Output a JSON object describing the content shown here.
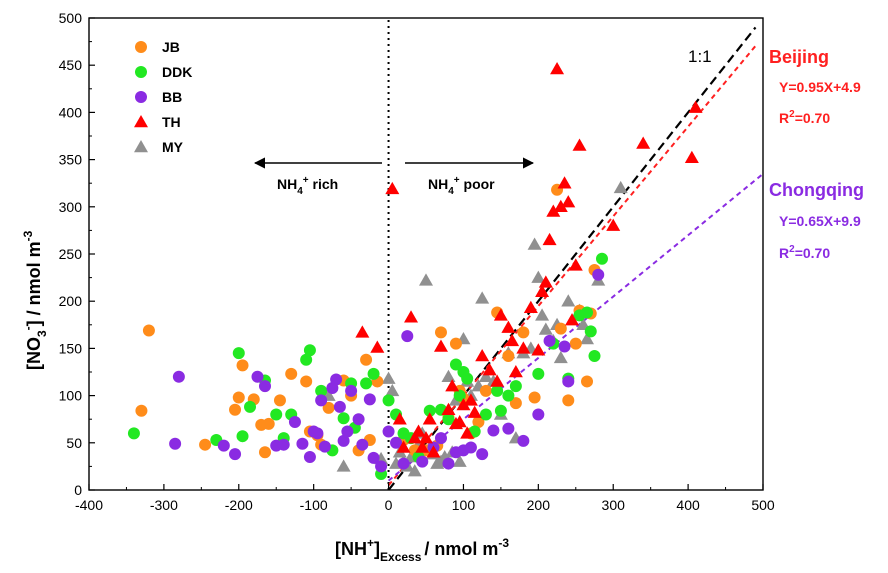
{
  "chart_data": {
    "type": "scatter",
    "xlim": [
      -400,
      500
    ],
    "ylim": [
      0,
      500
    ],
    "x_ticks": [
      -400,
      -300,
      -200,
      -100,
      0,
      100,
      200,
      300,
      400,
      500
    ],
    "y_ticks": [
      0,
      50,
      100,
      150,
      200,
      250,
      300,
      350,
      400,
      450,
      500
    ],
    "grid": false,
    "legend_position": "top-left",
    "xlabel": {
      "main": "[NH",
      "sup": "+",
      "tail": "]",
      "sub": "Excess",
      "unit": "/ nmol m",
      "unit_sup": "-3"
    },
    "ylabel": {
      "main": "[NO",
      "sub": "3",
      "sup": "-",
      "tail": "] / nmol m",
      "unit_sup": "-3"
    },
    "annotations": {
      "rich": {
        "pre": "NH",
        "sub": "4",
        "sup": "+",
        "post": " rich"
      },
      "poor": {
        "pre": "NH",
        "sub": "4",
        "sup": "+",
        "post": " poor"
      },
      "one_to_one": "1:1"
    },
    "regressions": [
      {
        "name": "Beijing",
        "equation": "Y=0.95X+4.9",
        "r2_pre": "R",
        "r2_sup": "2",
        "r2_post": "=0.70",
        "slope": 0.95,
        "intercept": 4.9,
        "x_range": [
          0,
          490
        ],
        "color": "#ff2020"
      },
      {
        "name": "Chongqing",
        "equation": "Y=0.65X+9.9",
        "r2_pre": "R",
        "r2_sup": "2",
        "r2_post": "=0.70",
        "slope": 0.65,
        "intercept": 9.9,
        "x_range": [
          0,
          500
        ],
        "color": "#8a2be2"
      }
    ],
    "reference_lines": [
      {
        "name": "1:1",
        "slope": 1,
        "intercept": 0,
        "x_range": [
          0,
          490
        ],
        "color": "#000000",
        "style": "dashed"
      },
      {
        "name": "x=0",
        "vertical_x": 0,
        "y_range": [
          0,
          500
        ],
        "color": "#000000",
        "style": "dotted"
      }
    ],
    "series": [
      {
        "name": "JB",
        "color": "#ff8c1a",
        "marker": "circle",
        "points": [
          [
            -320,
            169
          ],
          [
            -330,
            84
          ],
          [
            -245,
            48
          ],
          [
            -205,
            85
          ],
          [
            -200,
            98
          ],
          [
            -195,
            132
          ],
          [
            -180,
            96
          ],
          [
            -170,
            69
          ],
          [
            -165,
            40
          ],
          [
            -160,
            70
          ],
          [
            -145,
            95
          ],
          [
            -130,
            123
          ],
          [
            -110,
            115
          ],
          [
            -105,
            62
          ],
          [
            -95,
            58
          ],
          [
            -90,
            48
          ],
          [
            -80,
            87
          ],
          [
            -60,
            116
          ],
          [
            -50,
            100
          ],
          [
            -40,
            42
          ],
          [
            -30,
            138
          ],
          [
            -25,
            53
          ],
          [
            -15,
            115
          ],
          [
            20,
            53
          ],
          [
            35,
            42
          ],
          [
            50,
            42
          ],
          [
            65,
            47
          ],
          [
            70,
            167
          ],
          [
            80,
            77
          ],
          [
            90,
            155
          ],
          [
            95,
            105
          ],
          [
            100,
            97
          ],
          [
            110,
            60
          ],
          [
            120,
            72
          ],
          [
            130,
            105
          ],
          [
            145,
            188
          ],
          [
            160,
            142
          ],
          [
            170,
            92
          ],
          [
            180,
            167
          ],
          [
            195,
            98
          ],
          [
            225,
            318
          ],
          [
            230,
            171
          ],
          [
            240,
            95
          ],
          [
            250,
            155
          ],
          [
            265,
            115
          ],
          [
            270,
            187
          ],
          [
            275,
            233
          ],
          [
            255,
            190
          ]
        ]
      },
      {
        "name": "DDK",
        "color": "#22e822",
        "marker": "circle",
        "points": [
          [
            -340,
            60
          ],
          [
            -230,
            53
          ],
          [
            -200,
            145
          ],
          [
            -195,
            57
          ],
          [
            -185,
            88
          ],
          [
            -165,
            116
          ],
          [
            -150,
            80
          ],
          [
            -140,
            55
          ],
          [
            -130,
            80
          ],
          [
            -110,
            138
          ],
          [
            -105,
            148
          ],
          [
            -90,
            105
          ],
          [
            -75,
            42
          ],
          [
            -60,
            76
          ],
          [
            -50,
            113
          ],
          [
            -45,
            66
          ],
          [
            -30,
            113
          ],
          [
            -20,
            123
          ],
          [
            -10,
            17
          ],
          [
            0,
            95
          ],
          [
            10,
            80
          ],
          [
            20,
            60
          ],
          [
            30,
            55
          ],
          [
            40,
            35
          ],
          [
            55,
            84
          ],
          [
            70,
            85
          ],
          [
            80,
            75
          ],
          [
            90,
            133
          ],
          [
            95,
            100
          ],
          [
            100,
            125
          ],
          [
            105,
            118
          ],
          [
            115,
            62
          ],
          [
            130,
            80
          ],
          [
            145,
            105
          ],
          [
            150,
            84
          ],
          [
            160,
            100
          ],
          [
            170,
            110
          ],
          [
            200,
            123
          ],
          [
            220,
            155
          ],
          [
            240,
            118
          ],
          [
            255,
            185
          ],
          [
            270,
            168
          ],
          [
            275,
            142
          ],
          [
            285,
            245
          ],
          [
            265,
            188
          ]
        ]
      },
      {
        "name": "BB",
        "color": "#8a2be2",
        "marker": "circle",
        "points": [
          [
            -285,
            49
          ],
          [
            -280,
            120
          ],
          [
            -220,
            47
          ],
          [
            -205,
            38
          ],
          [
            -175,
            120
          ],
          [
            -165,
            110
          ],
          [
            -150,
            47
          ],
          [
            -140,
            48
          ],
          [
            -125,
            72
          ],
          [
            -115,
            49
          ],
          [
            -105,
            35
          ],
          [
            -100,
            62
          ],
          [
            -95,
            60
          ],
          [
            -90,
            95
          ],
          [
            -85,
            46
          ],
          [
            -75,
            108
          ],
          [
            -70,
            117
          ],
          [
            -65,
            88
          ],
          [
            -60,
            52
          ],
          [
            -55,
            62
          ],
          [
            -50,
            105
          ],
          [
            -40,
            75
          ],
          [
            -35,
            48
          ],
          [
            -25,
            96
          ],
          [
            -20,
            34
          ],
          [
            -10,
            25
          ],
          [
            0,
            62
          ],
          [
            10,
            50
          ],
          [
            20,
            28
          ],
          [
            25,
            163
          ],
          [
            45,
            30
          ],
          [
            60,
            45
          ],
          [
            70,
            55
          ],
          [
            80,
            28
          ],
          [
            90,
            40
          ],
          [
            100,
            42
          ],
          [
            110,
            45
          ],
          [
            125,
            38
          ],
          [
            140,
            63
          ],
          [
            160,
            65
          ],
          [
            180,
            52
          ],
          [
            200,
            80
          ],
          [
            215,
            158
          ],
          [
            235,
            152
          ],
          [
            240,
            115
          ],
          [
            280,
            228
          ]
        ]
      },
      {
        "name": "TH",
        "color": "#ff0000",
        "marker": "triangle",
        "points": [
          [
            -35,
            167
          ],
          [
            -15,
            151
          ],
          [
            5,
            319
          ],
          [
            15,
            75
          ],
          [
            20,
            45
          ],
          [
            30,
            183
          ],
          [
            35,
            55
          ],
          [
            40,
            62
          ],
          [
            45,
            45
          ],
          [
            50,
            55
          ],
          [
            55,
            75
          ],
          [
            60,
            40
          ],
          [
            70,
            152
          ],
          [
            80,
            85
          ],
          [
            85,
            110
          ],
          [
            90,
            70
          ],
          [
            95,
            72
          ],
          [
            100,
            90
          ],
          [
            105,
            60
          ],
          [
            110,
            95
          ],
          [
            115,
            82
          ],
          [
            125,
            142
          ],
          [
            135,
            127
          ],
          [
            145,
            115
          ],
          [
            150,
            185
          ],
          [
            160,
            172
          ],
          [
            165,
            158
          ],
          [
            170,
            125
          ],
          [
            180,
            150
          ],
          [
            190,
            193
          ],
          [
            200,
            148
          ],
          [
            205,
            210
          ],
          [
            210,
            220
          ],
          [
            215,
            265
          ],
          [
            220,
            295
          ],
          [
            225,
            446
          ],
          [
            230,
            300
          ],
          [
            235,
            325
          ],
          [
            240,
            305
          ],
          [
            245,
            180
          ],
          [
            250,
            238
          ],
          [
            255,
            365
          ],
          [
            300,
            280
          ],
          [
            340,
            367
          ],
          [
            405,
            352
          ],
          [
            410,
            405
          ]
        ]
      },
      {
        "name": "MY",
        "color": "#909090",
        "marker": "triangle",
        "points": [
          [
            -80,
            100
          ],
          [
            -60,
            25
          ],
          [
            -10,
            33
          ],
          [
            0,
            118
          ],
          [
            5,
            105
          ],
          [
            10,
            28
          ],
          [
            15,
            40
          ],
          [
            20,
            30
          ],
          [
            25,
            25
          ],
          [
            30,
            35
          ],
          [
            35,
            20
          ],
          [
            40,
            48
          ],
          [
            45,
            60
          ],
          [
            50,
            222
          ],
          [
            55,
            45
          ],
          [
            60,
            38
          ],
          [
            65,
            28
          ],
          [
            70,
            30
          ],
          [
            75,
            35
          ],
          [
            80,
            120
          ],
          [
            85,
            40
          ],
          [
            90,
            95
          ],
          [
            95,
            30
          ],
          [
            100,
            160
          ],
          [
            105,
            115
          ],
          [
            110,
            100
          ],
          [
            120,
            110
          ],
          [
            125,
            203
          ],
          [
            130,
            120
          ],
          [
            140,
            115
          ],
          [
            150,
            80
          ],
          [
            160,
            145
          ],
          [
            170,
            55
          ],
          [
            180,
            145
          ],
          [
            190,
            150
          ],
          [
            195,
            260
          ],
          [
            200,
            225
          ],
          [
            205,
            185
          ],
          [
            210,
            170
          ],
          [
            220,
            158
          ],
          [
            225,
            175
          ],
          [
            230,
            140
          ],
          [
            240,
            200
          ],
          [
            255,
            190
          ],
          [
            260,
            175
          ],
          [
            265,
            160
          ],
          [
            280,
            222
          ],
          [
            310,
            320
          ]
        ]
      }
    ]
  }
}
